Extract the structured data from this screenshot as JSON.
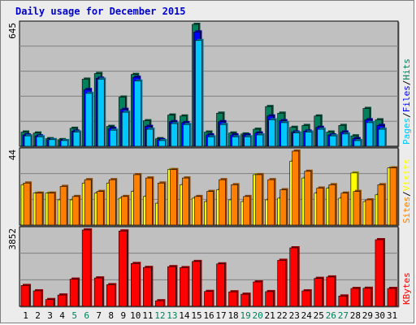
{
  "title": "Daily usage for December 2015",
  "colors": {
    "hits": "#00805c",
    "files": "#0000ff",
    "pages": "#00c8ff",
    "visits": "#ffff00",
    "sites": "#ff8000",
    "kbytes": "#ff0000",
    "weekend_label": "#00805c",
    "weekday_label": "#000000",
    "panel_bg": "#c0c0c0"
  },
  "chart_data": [
    {
      "type": "bar",
      "title": "Daily usage for December 2015",
      "categories": [
        "1",
        "2",
        "3",
        "4",
        "5",
        "6",
        "7",
        "8",
        "9",
        "10",
        "11",
        "12",
        "13",
        "14",
        "15",
        "16",
        "17",
        "18",
        "19",
        "20",
        "21",
        "22",
        "23",
        "24",
        "25",
        "26",
        "27",
        "28",
        "29",
        "30",
        "31"
      ],
      "weekend_days": [
        "5",
        "6",
        "12",
        "13",
        "19",
        "20",
        "26",
        "27"
      ],
      "ymax_label": "645",
      "ylim": [
        0,
        645
      ],
      "series": [
        {
          "name": "Hits",
          "values": [
            75,
            70,
            40,
            35,
            95,
            355,
            385,
            105,
            260,
            380,
            135,
            40,
            165,
            160,
            645,
            75,
            175,
            70,
            65,
            90,
            210,
            175,
            100,
            110,
            160,
            75,
            110,
            55,
            200,
            140,
            0
          ]
        },
        {
          "name": "Files",
          "values": [
            60,
            55,
            35,
            30,
            80,
            300,
            360,
            95,
            195,
            365,
            105,
            35,
            130,
            125,
            605,
            60,
            130,
            60,
            60,
            70,
            160,
            135,
            75,
            80,
            100,
            60,
            75,
            40,
            140,
            110,
            0
          ]
        },
        {
          "name": "Pages",
          "values": [
            55,
            50,
            35,
            30,
            75,
            280,
            355,
            85,
            180,
            345,
            90,
            30,
            120,
            115,
            560,
            50,
            115,
            50,
            50,
            60,
            140,
            125,
            70,
            75,
            90,
            55,
            65,
            30,
            125,
            90,
            0
          ]
        }
      ],
      "legend": [
        "Pages",
        "Files",
        "Hits"
      ]
    },
    {
      "type": "bar",
      "categories": [
        "1",
        "2",
        "3",
        "4",
        "5",
        "6",
        "7",
        "8",
        "9",
        "10",
        "11",
        "12",
        "13",
        "14",
        "15",
        "16",
        "17",
        "18",
        "19",
        "20",
        "21",
        "22",
        "23",
        "24",
        "25",
        "26",
        "27",
        "28",
        "29",
        "30",
        "31"
      ],
      "ymax_label": "44",
      "ylim": [
        0,
        44
      ],
      "series": [
        {
          "name": "Visits",
          "values": [
            24,
            19,
            19,
            15,
            15,
            25,
            19,
            25,
            16,
            20,
            17,
            13,
            33,
            24,
            16,
            14,
            21,
            15,
            14,
            30,
            15,
            16,
            38,
            28,
            19,
            22,
            16,
            31,
            14,
            18,
            34
          ]
        },
        {
          "name": "Sites",
          "values": [
            25,
            19,
            19,
            23,
            17,
            27,
            20,
            27,
            17,
            30,
            28,
            25,
            33,
            28,
            17,
            20,
            27,
            24,
            17,
            30,
            27,
            21,
            44,
            32,
            22,
            24,
            19,
            20,
            15,
            24,
            34
          ]
        }
      ],
      "legend": [
        "Sites",
        "Visits"
      ]
    },
    {
      "type": "bar",
      "categories": [
        "1",
        "2",
        "3",
        "4",
        "5",
        "6",
        "7",
        "8",
        "9",
        "10",
        "11",
        "12",
        "13",
        "14",
        "15",
        "16",
        "17",
        "18",
        "19",
        "20",
        "21",
        "22",
        "23",
        "24",
        "25",
        "26",
        "27",
        "28",
        "29",
        "30",
        "31"
      ],
      "ymax_label": "3852",
      "ylim": [
        0,
        3852
      ],
      "series": [
        {
          "name": "KBytes",
          "values": [
            1050,
            780,
            340,
            570,
            1370,
            3852,
            1430,
            1090,
            3800,
            2160,
            1960,
            280,
            2000,
            1950,
            2260,
            750,
            2140,
            730,
            610,
            1230,
            740,
            2320,
            2950,
            780,
            1410,
            1480,
            520,
            900,
            910,
            3360,
            900
          ]
        }
      ],
      "legend": [
        "KBytes"
      ]
    }
  ],
  "legend_text": {
    "pages": "Pages",
    "files": "Files",
    "hits": "Hits",
    "sites": "Sites",
    "visits": "Visits",
    "kbytes": "KBytes",
    "sep": "/"
  }
}
